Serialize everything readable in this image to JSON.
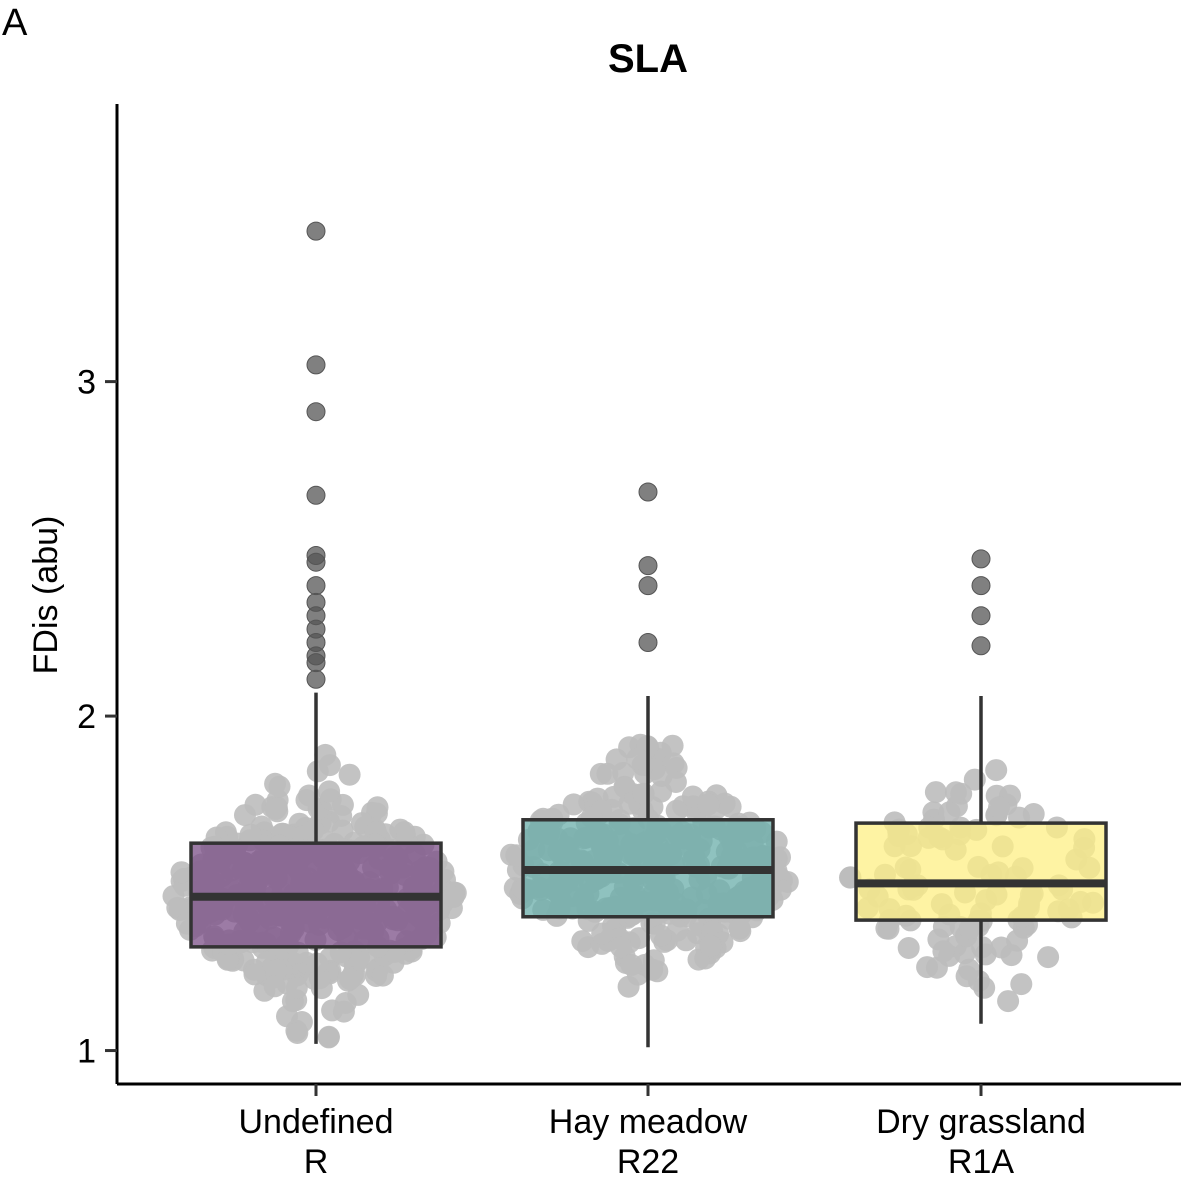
{
  "panel_label": "A",
  "chart_data": {
    "type": "box",
    "title": "SLA",
    "ylabel": "FDis (abu)",
    "xlabel": "",
    "ylim": [
      0.9,
      3.83
    ],
    "yticks": [
      1,
      2,
      3
    ],
    "grid": false,
    "legend": "none",
    "categories": [
      {
        "name": "Undefined",
        "code": "R"
      },
      {
        "name": "Hay meadow",
        "code": "R22"
      },
      {
        "name": "Dry grassland",
        "code": "R1A"
      }
    ],
    "series": [
      {
        "category": "Undefined",
        "fill": "#7b4f87",
        "min": 1.02,
        "q1": 1.31,
        "median": 1.46,
        "q3": 1.62,
        "max": 2.07,
        "outliers": [
          3.45,
          3.05,
          2.91,
          2.66,
          2.48,
          2.46,
          2.39,
          2.34,
          2.3,
          2.26,
          2.22,
          2.18,
          2.16,
          2.11
        ]
      },
      {
        "category": "Hay meadow",
        "fill": "#6aadaa",
        "min": 1.01,
        "q1": 1.4,
        "median": 1.54,
        "q3": 1.69,
        "max": 2.06,
        "outliers": [
          2.67,
          2.45,
          2.39,
          2.22
        ]
      },
      {
        "category": "Dry grassland",
        "fill": "#fdef84",
        "min": 1.08,
        "q1": 1.39,
        "median": 1.5,
        "q3": 1.68,
        "max": 2.06,
        "outliers": [
          2.47,
          2.39,
          2.3,
          2.21
        ]
      }
    ]
  }
}
